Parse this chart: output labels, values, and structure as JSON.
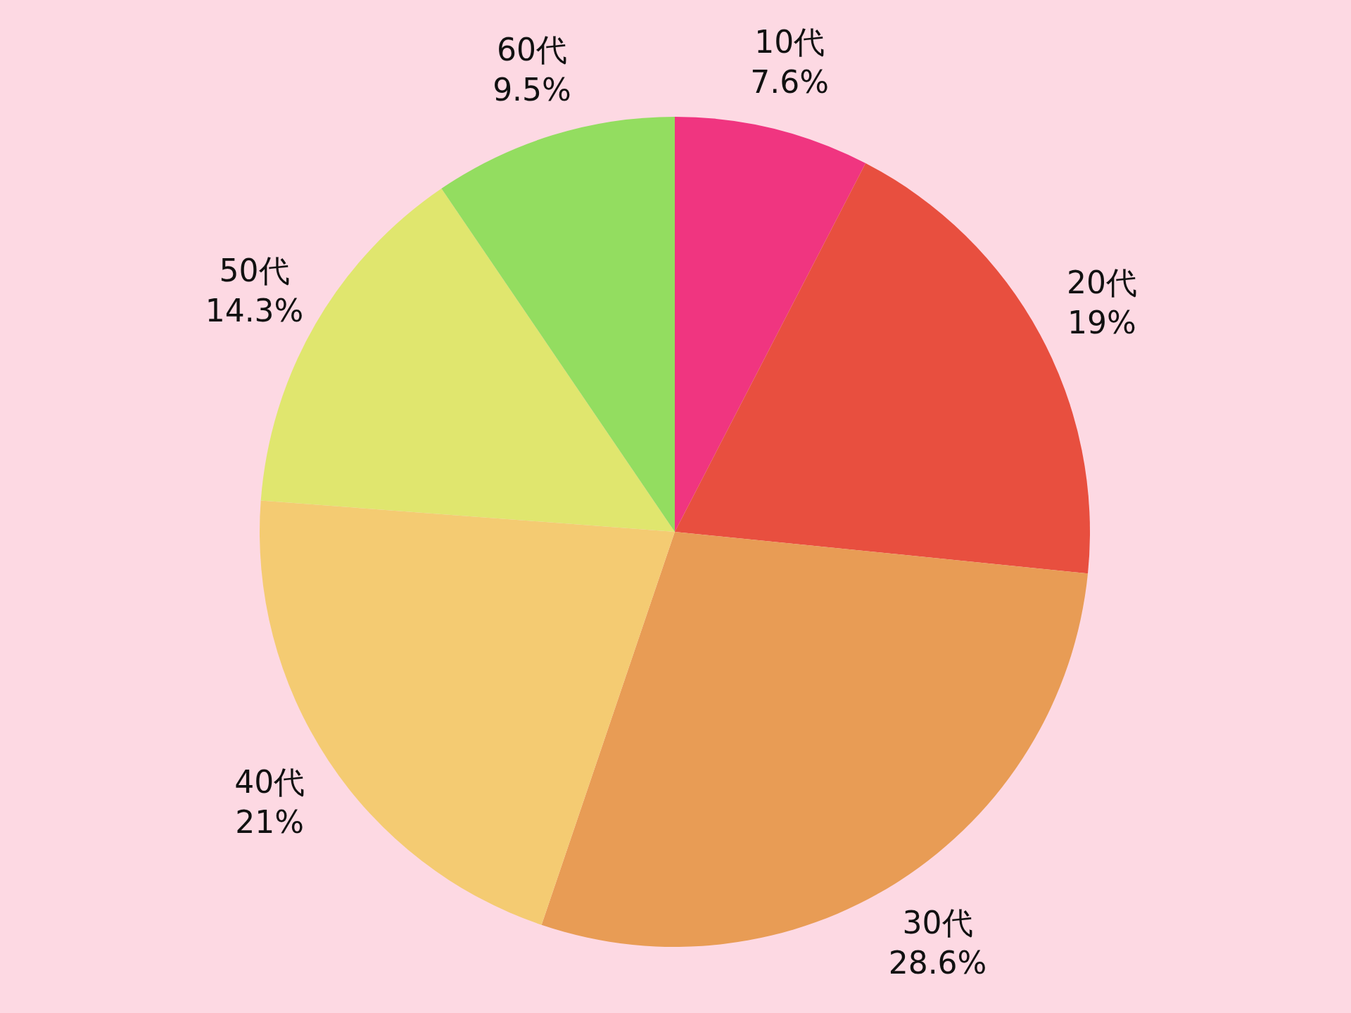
{
  "chart_data": {
    "type": "pie",
    "categories": [
      "10代",
      "20代",
      "30代",
      "40代",
      "50代",
      "60代"
    ],
    "values": [
      7.6,
      19,
      28.6,
      21,
      14.3,
      9.5
    ],
    "value_labels": [
      "7.6%",
      "19%",
      "28.6%",
      "21%",
      "14.3%",
      "9.5%"
    ],
    "colors": [
      "#f03580",
      "#e84f3f",
      "#e89c55",
      "#f4cb72",
      "#e0e66e",
      "#93dd60"
    ]
  }
}
